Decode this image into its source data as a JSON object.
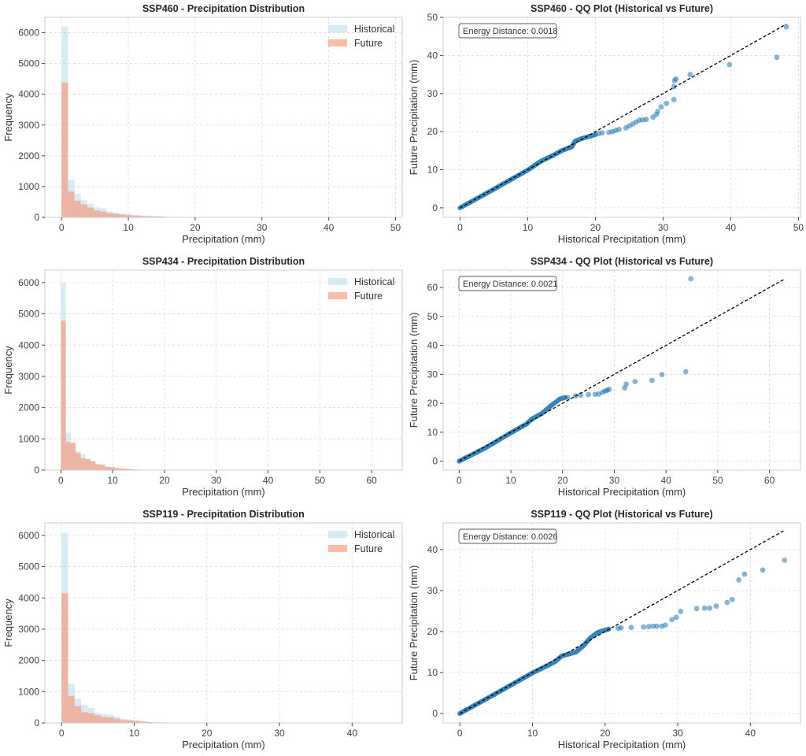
{
  "colors": {
    "historical": "#add8e6",
    "future": "#fa8f6e",
    "scatter": "#1f77b4",
    "ref_line": "#000000",
    "grid": "#d9d9d9",
    "axes_edge": "#cccccc"
  },
  "legend": {
    "historical": "Historical",
    "future": "Future"
  },
  "chart_data": [
    {
      "type": "bar",
      "id": "ssp460-hist",
      "title": "SSP460 - Precipitation Distribution",
      "xlabel": "Precipitation (mm)",
      "ylabel": "Frequency",
      "xlim": [
        -2.5,
        51
      ],
      "ylim": [
        0,
        6500
      ],
      "xticks": [
        0,
        10,
        20,
        30,
        40,
        50
      ],
      "yticks": [
        0,
        1000,
        2000,
        3000,
        4000,
        5000,
        6000
      ],
      "grid": true,
      "legend_position": "top-right",
      "bin_width": 0.96,
      "series": [
        {
          "name": "Historical",
          "values": [
            6200,
            1220,
            760,
            560,
            440,
            320,
            290,
            190,
            150,
            120,
            100,
            80,
            60,
            45,
            35,
            30,
            20,
            15,
            10,
            8,
            5,
            4,
            3,
            2,
            2,
            1,
            1,
            1,
            1,
            1,
            0,
            0,
            1,
            0,
            1,
            0,
            0,
            0,
            0,
            0,
            1,
            0,
            0,
            0,
            0,
            0,
            0,
            0,
            1,
            0,
            1
          ]
        },
        {
          "name": "Future",
          "values": [
            4380,
            840,
            540,
            420,
            320,
            220,
            190,
            140,
            120,
            90,
            70,
            55,
            40,
            35,
            30,
            28,
            10,
            8,
            12,
            6,
            3,
            3,
            2,
            2,
            2,
            1,
            1,
            1,
            1,
            1,
            0,
            0,
            1,
            0,
            1,
            0,
            0,
            0,
            0,
            0,
            1,
            0,
            0,
            0,
            0,
            0,
            0,
            0,
            0,
            0,
            1
          ]
        }
      ]
    },
    {
      "type": "scatter",
      "id": "ssp460-qq",
      "title": "SSP460 - QQ Plot (Historical vs Future)",
      "xlabel": "Historical Precipitation (mm)",
      "ylabel": "Future Precipitation (mm)",
      "xlim": [
        -2.5,
        50.3
      ],
      "ylim": [
        -2.5,
        50
      ],
      "xticks": [
        0,
        10,
        20,
        30,
        40,
        50
      ],
      "yticks": [
        0,
        10,
        20,
        30,
        40,
        50
      ],
      "grid": true,
      "annotation": "Energy Distance: 0.0018",
      "ref_line": [
        [
          0,
          0
        ],
        [
          48.2,
          48.2
        ]
      ],
      "bulk_segments": [
        [
          0,
          0
        ],
        [
          5,
          4.9
        ],
        [
          10,
          9.9
        ],
        [
          12,
          12.3
        ],
        [
          14,
          14
        ],
        [
          15,
          15
        ],
        [
          16.5,
          16
        ],
        [
          17,
          17.5
        ],
        [
          18,
          18.2
        ],
        [
          20,
          19.2
        ]
      ],
      "points": [
        [
          20.5,
          19.5
        ],
        [
          21,
          19.7
        ],
        [
          22,
          19.8
        ],
        [
          22.5,
          20
        ],
        [
          23,
          20.3
        ],
        [
          23.5,
          20.6
        ],
        [
          24.5,
          21
        ],
        [
          25,
          21.5
        ],
        [
          25.5,
          22
        ],
        [
          26,
          22.5
        ],
        [
          26.5,
          23
        ],
        [
          27,
          23.1
        ],
        [
          27.5,
          23.2
        ],
        [
          28.5,
          23.8
        ],
        [
          29,
          24.5
        ],
        [
          29.2,
          25.3
        ],
        [
          29.7,
          26.5
        ],
        [
          30.5,
          27.4
        ],
        [
          31.6,
          28.4
        ],
        [
          31.6,
          31.8
        ],
        [
          31.7,
          33.4
        ],
        [
          31.9,
          33.8
        ],
        [
          34,
          35
        ],
        [
          39.8,
          37.6
        ],
        [
          46.8,
          39.5
        ],
        [
          48.2,
          47.5
        ]
      ]
    },
    {
      "type": "bar",
      "id": "ssp434-hist",
      "title": "SSP434 - Precipitation Distribution",
      "xlabel": "Precipitation (mm)",
      "ylabel": "Frequency",
      "xlim": [
        -3.1,
        65.9
      ],
      "ylim": [
        0,
        6400
      ],
      "xticks": [
        0,
        10,
        20,
        30,
        40,
        50,
        60
      ],
      "yticks": [
        0,
        1000,
        2000,
        3000,
        4000,
        5000,
        6000
      ],
      "grid": true,
      "legend_position": "top-right",
      "bin_width": 0.95,
      "series": [
        {
          "name": "Historical",
          "values": [
            6000,
            1200,
            840,
            600,
            500,
            340,
            300,
            200,
            180,
            120,
            100,
            70,
            50,
            40,
            30,
            20,
            10,
            6,
            4,
            3,
            2,
            2,
            1,
            1,
            1,
            1,
            1,
            1,
            1,
            1,
            0,
            0,
            1,
            1,
            0,
            0,
            0,
            0,
            0,
            1,
            0,
            0,
            0,
            1
          ]
        },
        {
          "name": "Future",
          "values": [
            4780,
            900,
            880,
            550,
            380,
            360,
            280,
            180,
            170,
            100,
            90,
            60,
            50,
            40,
            25,
            15,
            10,
            8,
            6,
            4,
            3,
            2,
            2,
            1,
            1,
            1,
            1,
            1,
            1,
            0,
            0,
            1,
            0,
            0,
            0,
            0,
            0,
            0,
            0,
            0,
            0,
            0,
            0,
            0,
            0,
            0,
            0,
            0,
            0,
            0,
            0,
            0,
            0,
            0,
            0,
            0,
            0,
            0,
            0,
            0,
            0,
            0,
            1
          ]
        }
      ]
    },
    {
      "type": "scatter",
      "id": "ssp434-qq",
      "title": "SSP434 - QQ Plot (Historical vs Future)",
      "xlabel": "Historical Precipitation (mm)",
      "ylabel": "Future Precipitation (mm)",
      "xlim": [
        -3.1,
        66
      ],
      "ylim": [
        -3.1,
        66
      ],
      "xticks": [
        0,
        10,
        20,
        30,
        40,
        50,
        60
      ],
      "yticks": [
        0,
        10,
        20,
        30,
        40,
        50,
        60
      ],
      "grid": true,
      "annotation": "Energy Distance: 0.0021",
      "ref_line": [
        [
          0,
          0
        ],
        [
          63,
          63
        ]
      ],
      "bulk_segments": [
        [
          0,
          0
        ],
        [
          5,
          4.5
        ],
        [
          10,
          9.8
        ],
        [
          13,
          12.8
        ],
        [
          14,
          14.5
        ],
        [
          16,
          16.5
        ],
        [
          18,
          19.5
        ],
        [
          19.5,
          21.5
        ],
        [
          20.5,
          22
        ]
      ],
      "points": [
        [
          21,
          22
        ],
        [
          22.5,
          22.5
        ],
        [
          23.5,
          22.8
        ],
        [
          25,
          23
        ],
        [
          26.3,
          23.1
        ],
        [
          27,
          23.2
        ],
        [
          27.7,
          23.8
        ],
        [
          28.2,
          24.2
        ],
        [
          28.6,
          24.5
        ],
        [
          29,
          24.8
        ],
        [
          32,
          25.3
        ],
        [
          32.3,
          26.6
        ],
        [
          34,
          27.5
        ],
        [
          37.3,
          27.9
        ],
        [
          39.2,
          29.9
        ],
        [
          43.8,
          30.9
        ],
        [
          44.8,
          63
        ]
      ]
    },
    {
      "type": "bar",
      "id": "ssp119-hist",
      "title": "SSP119 - Precipitation Distribution",
      "xlabel": "Precipitation (mm)",
      "ylabel": "Frequency",
      "xlim": [
        -2.3,
        46.9
      ],
      "ylim": [
        0,
        6400
      ],
      "xticks": [
        0,
        10,
        20,
        30,
        40
      ],
      "yticks": [
        0,
        1000,
        2000,
        3000,
        4000,
        5000,
        6000
      ],
      "grid": true,
      "legend_position": "top-right",
      "bin_width": 0.9,
      "series": [
        {
          "name": "Historical",
          "values": [
            6080,
            1260,
            780,
            580,
            480,
            330,
            290,
            260,
            190,
            130,
            110,
            90,
            50,
            30,
            30,
            20,
            10,
            6,
            4,
            3,
            2,
            2,
            1,
            1,
            1,
            1,
            1,
            1,
            1,
            1,
            1,
            1,
            0,
            1,
            1,
            1,
            0,
            1,
            1,
            1,
            0,
            0,
            1,
            0,
            0,
            0,
            0,
            1
          ]
        },
        {
          "name": "Future",
          "values": [
            4150,
            860,
            530,
            340,
            310,
            250,
            190,
            180,
            130,
            90,
            80,
            60,
            40,
            25,
            15,
            10,
            8,
            5,
            3,
            2,
            2,
            1,
            1,
            1,
            1,
            1,
            1,
            1,
            1,
            1,
            1,
            1,
            0,
            1,
            1,
            1,
            0,
            1,
            1,
            1,
            0,
            0,
            1
          ]
        }
      ]
    },
    {
      "type": "scatter",
      "id": "ssp119-qq",
      "title": "SSP119 - QQ Plot (Historical vs Future)",
      "xlabel": "Historical Precipitation (mm)",
      "ylabel": "Future Precipitation (mm)",
      "xlim": [
        -2.3,
        46.9
      ],
      "ylim": [
        -2.3,
        46.5
      ],
      "xticks": [
        0,
        10,
        20,
        30,
        40
      ],
      "yticks": [
        0,
        10,
        20,
        30,
        40
      ],
      "grid": true,
      "annotation": "Energy Distance: 0.0026",
      "ref_line": [
        [
          0,
          0
        ],
        [
          44.7,
          44.7
        ]
      ],
      "bulk_segments": [
        [
          0,
          0
        ],
        [
          5,
          4.9
        ],
        [
          10,
          9.9
        ],
        [
          13,
          12.5
        ],
        [
          14,
          14
        ],
        [
          16,
          15
        ],
        [
          17,
          16.5
        ],
        [
          18,
          18.5
        ],
        [
          19,
          19.8
        ],
        [
          20.5,
          20.6
        ]
      ],
      "points": [
        [
          21.8,
          20.8
        ],
        [
          22.2,
          20.9
        ],
        [
          23.6,
          21
        ],
        [
          25.3,
          21.1
        ],
        [
          26,
          21.2
        ],
        [
          26.6,
          21.3
        ],
        [
          27.1,
          21.3
        ],
        [
          27.8,
          21.3
        ],
        [
          28.3,
          21.6
        ],
        [
          29.2,
          22.9
        ],
        [
          29.8,
          23.5
        ],
        [
          30.4,
          24.9
        ],
        [
          32.6,
          25.6
        ],
        [
          33.7,
          25.7
        ],
        [
          34.4,
          25.7
        ],
        [
          35.3,
          26.2
        ],
        [
          36.8,
          27.1
        ],
        [
          37.5,
          27.8
        ],
        [
          38.4,
          32.6
        ],
        [
          39.2,
          34
        ],
        [
          41.7,
          35
        ],
        [
          44.7,
          37.4
        ]
      ]
    }
  ]
}
